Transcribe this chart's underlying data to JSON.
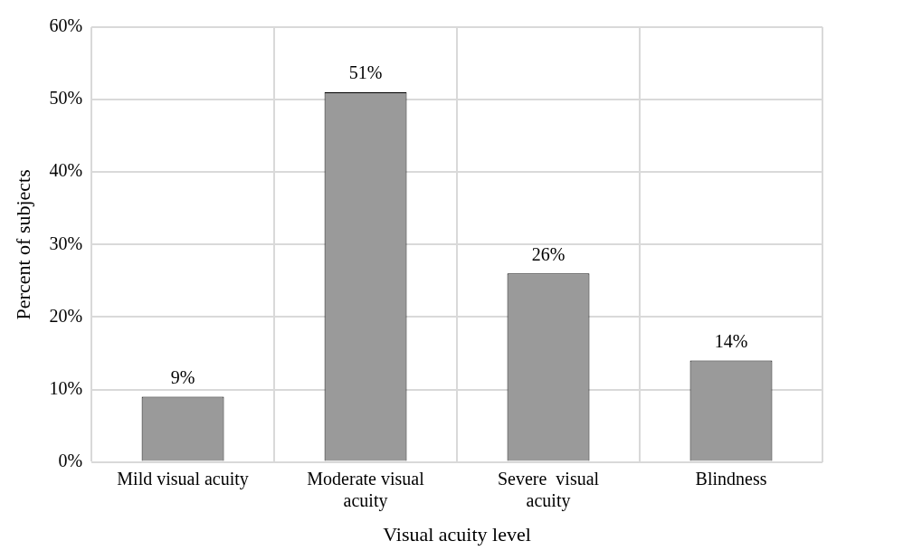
{
  "chart_data": {
    "type": "bar",
    "xlabel": "Visual acuity level",
    "ylabel": "Percent of subjects",
    "categories": [
      "Mild visual acuity",
      "Moderate visual acuity",
      "Severe  visual acuity",
      "Blindness"
    ],
    "values": [
      9,
      51,
      26,
      14
    ],
    "value_labels": [
      "9%",
      "51%",
      "26%",
      "14%"
    ],
    "color": "#9a9a9a",
    "ylim": [
      0,
      60
    ],
    "yticks": [
      {
        "value": 0,
        "label": "0%"
      },
      {
        "value": 10,
        "label": "10%"
      },
      {
        "value": 20,
        "label": "20%"
      },
      {
        "value": 30,
        "label": "30%"
      },
      {
        "value": 40,
        "label": "40%"
      },
      {
        "value": 50,
        "label": "50%"
      },
      {
        "value": 60,
        "label": "60%"
      }
    ],
    "grid": true,
    "legend": false
  }
}
